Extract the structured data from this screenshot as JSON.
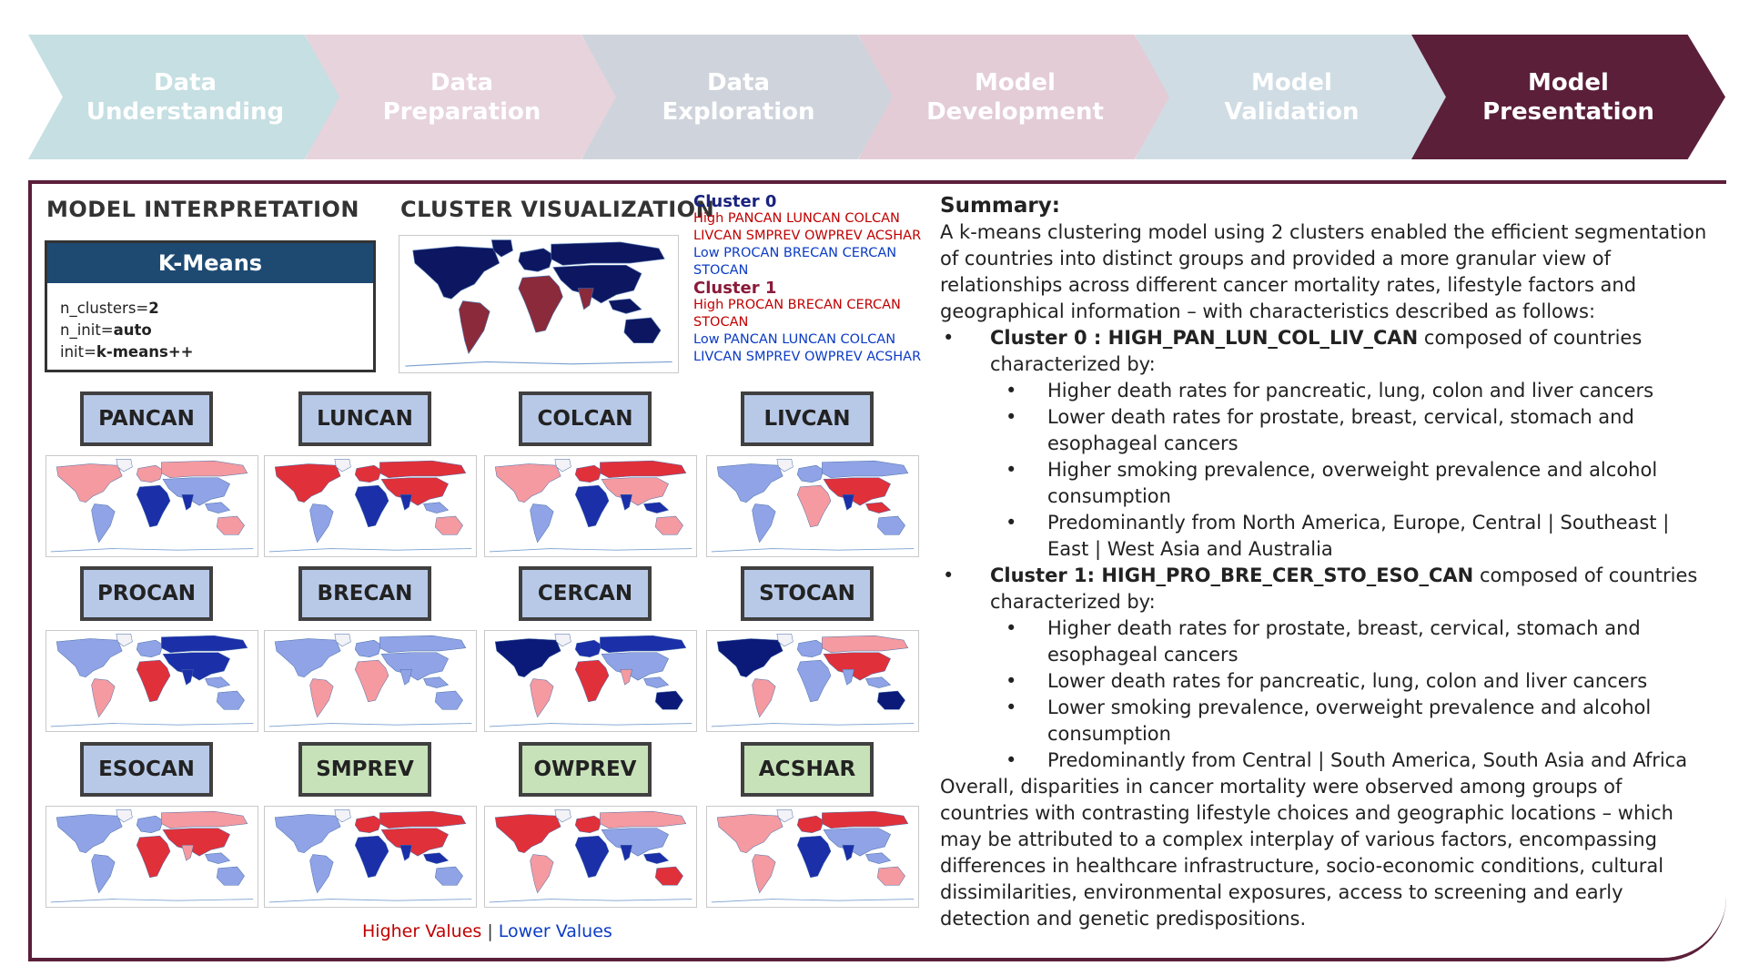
{
  "process_steps": [
    {
      "label": "Data\nUnderstanding",
      "color": "#c5dfe2",
      "active": false
    },
    {
      "label": "Data\nPreparation",
      "color": "#e7d3dc",
      "active": false
    },
    {
      "label": "Data\nExploration",
      "color": "#cfd4dc",
      "active": false
    },
    {
      "label": "Model\nDevelopment",
      "color": "#e3ccd6",
      "active": false
    },
    {
      "label": "Model\nValidation",
      "color": "#cfdce4",
      "active": false
    },
    {
      "label": "Model\nPresentation",
      "color": "#5b1f3a",
      "active": true
    }
  ],
  "interpretation": {
    "title": "MODEL INTERPRETATION",
    "model_name": "K-Means",
    "params": [
      {
        "key": "n_clusters=",
        "value": "2"
      },
      {
        "key": "n_init=",
        "value": "auto"
      },
      {
        "key": "init=",
        "value": "k-means++"
      }
    ]
  },
  "visualization": {
    "title": "CLUSTER VISUALIZATION",
    "cluster0_title": "Cluster 0",
    "cluster0_high": "High PANCAN LUNCAN COLCAN LIVCAN SMPREV OWPREV ACSHAR",
    "cluster0_low": "Low PROCAN BRECAN CERCAN STOCAN",
    "cluster1_title": "Cluster 1",
    "cluster1_high": "High PROCAN BRECAN CERCAN STOCAN",
    "cluster1_low": "Low PANCAN LUNCAN COLCAN LIVCAN SMPREV OWPREV ACSHAR"
  },
  "variables": [
    {
      "name": "PANCAN",
      "kind": "blue"
    },
    {
      "name": "LUNCAN",
      "kind": "blue"
    },
    {
      "name": "COLCAN",
      "kind": "blue"
    },
    {
      "name": "LIVCAN",
      "kind": "blue"
    },
    {
      "name": "PROCAN",
      "kind": "blue"
    },
    {
      "name": "BRECAN",
      "kind": "blue"
    },
    {
      "name": "CERCAN",
      "kind": "blue"
    },
    {
      "name": "STOCAN",
      "kind": "blue"
    },
    {
      "name": "ESOCAN",
      "kind": "blue"
    },
    {
      "name": "SMPREV",
      "kind": "green"
    },
    {
      "name": "OWPREV",
      "kind": "green"
    },
    {
      "name": "ACSHAR",
      "kind": "green"
    }
  ],
  "legend": {
    "higher": "Higher Values",
    "separator": " | ",
    "lower": "Lower Values"
  },
  "summary": {
    "title": "Summary:",
    "intro": "A k-means clustering model using 2 clusters enabled the efficient segmentation of countries into distinct groups and provided a more granular view of relationships across different cancer mortality rates, lifestyle factors and geographical information – with characteristics described as follows:",
    "cluster0_name": "Cluster 0 : HIGH_PAN_LUN_COL_LIV_CAN",
    "cluster0_suffix": " composed of countries characterized by:",
    "cluster0_points": [
      "Higher death rates for pancreatic, lung, colon and liver cancers",
      "Lower death rates for prostate, breast, cervical, stomach and esophageal cancers",
      "Higher smoking prevalence, overweight prevalence and alcohol consumption",
      "Predominantly from North America, Europe, Central | Southeast | East | West Asia and Australia"
    ],
    "cluster1_name": "Cluster 1: HIGH_PRO_BRE_CER_STO_ESO_CAN",
    "cluster1_suffix": " composed of countries characterized by:",
    "cluster1_points": [
      "Higher death rates for prostate, breast, cervical, stomach and esophageal cancers",
      "Lower death rates for pancreatic, lung, colon and liver cancers",
      "Lower smoking prevalence, overweight prevalence and alcohol consumption",
      "Predominantly from Central | South America, South Asia and Africa"
    ],
    "conclusion": "Overall, disparities in cancer mortality were observed among groups of countries with contrasting lifestyle choices and geographic locations – which may be attributed to a complex interplay of various factors, encompassing differences in healthcare infrastructure, socio-economic conditions, cultural dissimilarities, environmental exposures, access to screening and early detection and genetic predispositions."
  },
  "colors": {
    "frame": "#5b1f3a",
    "cluster0": "#0d1660",
    "cluster1": "#8b2a3a",
    "high": "#d7191c",
    "low": "#1a2fa8"
  }
}
